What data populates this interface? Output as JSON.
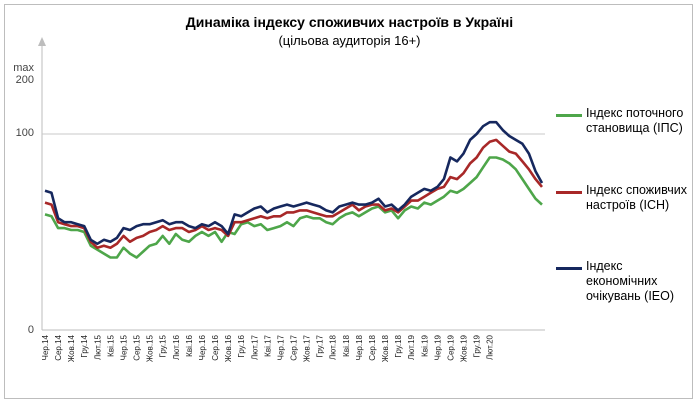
{
  "chart_data": {
    "type": "line",
    "title": "Динаміка індексу споживчих настроїв в Україні",
    "subtitle": "(цільова аудиторія 16+)",
    "ylabel_top": "max",
    "y_ticks": [
      "200",
      "100",
      "0"
    ],
    "ylim": [
      0,
      200
    ],
    "grid": false,
    "legend_position": "right",
    "x_labels": [
      "Чер.14",
      "Сер.14",
      "Жов.14",
      "Гру.14",
      "Лют.15",
      "Кві.15",
      "Чер.15",
      "Сер.15",
      "Жов.15",
      "Гру.15",
      "Лют.16",
      "Кві.16",
      "Чер.16",
      "Сер.16",
      "Жов.16",
      "Гру.16",
      "Лют.17",
      "Кві.17",
      "Чер.17",
      "Сер.17",
      "Жов.17",
      "Гру.17",
      "Лют.18",
      "Кві.18",
      "Чер.18",
      "Сер.18",
      "Жов.18",
      "Гру.18",
      "Лют.19",
      "Кві.19",
      "Чер.19",
      "Сер.19",
      "Жов.19",
      "Гру.19",
      "Лют.20"
    ],
    "series": [
      {
        "name": "Індекс поточного становища (ІПС)",
        "color": "#4ea64a",
        "values": [
          59,
          58,
          52,
          52,
          51,
          51,
          50,
          43,
          41,
          39,
          37,
          37,
          42,
          39,
          37,
          40,
          43,
          44,
          48,
          44,
          49,
          46,
          45,
          48,
          50,
          48,
          50,
          45,
          50,
          49,
          54,
          55,
          53,
          54,
          51,
          52,
          53,
          55,
          53,
          57,
          58,
          57,
          57,
          55,
          54,
          57,
          59,
          60,
          58,
          60,
          62,
          63,
          60,
          61,
          57,
          61,
          63,
          62,
          65,
          64,
          66,
          68,
          71,
          70,
          72,
          75,
          78,
          83,
          88,
          88,
          87,
          85,
          82,
          77,
          72,
          67,
          64
        ]
      },
      {
        "name": "Індекс споживчих настроїв (ІСН)",
        "color": "#a82828",
        "values": [
          65,
          64,
          55,
          54,
          53,
          53,
          52,
          45,
          42,
          43,
          42,
          44,
          48,
          45,
          47,
          48,
          50,
          51,
          53,
          51,
          52,
          52,
          50,
          51,
          53,
          51,
          52,
          51,
          48,
          55,
          55,
          56,
          57,
          58,
          57,
          58,
          58,
          60,
          60,
          61,
          61,
          60,
          59,
          58,
          58,
          60,
          62,
          64,
          61,
          63,
          64,
          64,
          61,
          62,
          60,
          63,
          66,
          66,
          68,
          70,
          72,
          73,
          78,
          77,
          80,
          85,
          88,
          93,
          96,
          97,
          94,
          91,
          90,
          86,
          82,
          77,
          73
        ]
      },
      {
        "name": "Індекс економічних очікувань (ІЕО)",
        "color": "#16285e",
        "values": [
          71,
          70,
          57,
          55,
          55,
          54,
          53,
          46,
          44,
          46,
          45,
          47,
          52,
          51,
          53,
          54,
          54,
          55,
          56,
          54,
          55,
          55,
          53,
          52,
          54,
          53,
          55,
          53,
          49,
          59,
          58,
          60,
          62,
          63,
          60,
          62,
          63,
          64,
          63,
          64,
          65,
          64,
          63,
          61,
          60,
          63,
          64,
          65,
          64,
          64,
          65,
          67,
          63,
          64,
          61,
          64,
          68,
          70,
          72,
          71,
          73,
          77,
          88,
          86,
          90,
          97,
          100,
          104,
          106,
          106,
          102,
          99,
          97,
          95,
          90,
          81,
          75
        ]
      }
    ]
  }
}
